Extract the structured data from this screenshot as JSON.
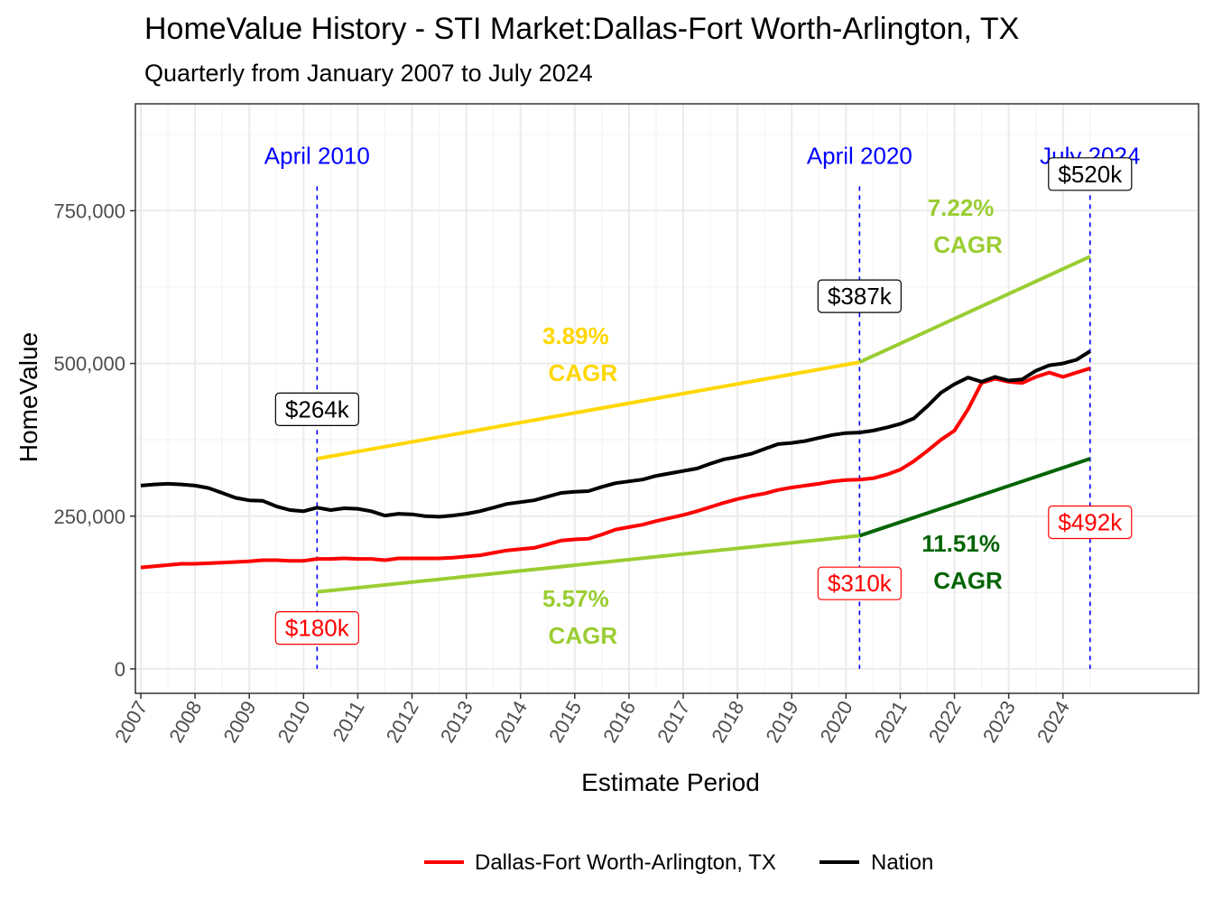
{
  "chart_data": {
    "type": "line",
    "title": "HomeValue History - STI Market:Dallas-Fort Worth-Arlington, TX",
    "subtitle": "Quarterly from January 2007 to July 2024",
    "xlabel": "Estimate Period",
    "ylabel": "HomeValue",
    "ylim": [
      -40000,
      925000
    ],
    "xlim": [
      2006.9,
      2026.5
    ],
    "x_ticks": [
      "2007",
      "2008",
      "2009",
      "2010",
      "2011",
      "2012",
      "2013",
      "2014",
      "2015",
      "2016",
      "2017",
      "2018",
      "2019",
      "2020",
      "2021",
      "2022",
      "2023",
      "2024"
    ],
    "y_ticks": [
      {
        "value": 0,
        "label": "0"
      },
      {
        "value": 250000,
        "label": "250,000"
      },
      {
        "value": 500000,
        "label": "500,000"
      },
      {
        "value": 750000,
        "label": "750,000"
      }
    ],
    "legend_position": "bottom",
    "series": [
      {
        "name": "Dallas-Fort Worth-Arlington, TX",
        "color": "#ff0000",
        "points": [
          [
            2007.0,
            166000
          ],
          [
            2007.25,
            168000
          ],
          [
            2007.5,
            170000
          ],
          [
            2007.75,
            172000
          ],
          [
            2008.0,
            172000
          ],
          [
            2008.25,
            173000
          ],
          [
            2008.5,
            174000
          ],
          [
            2008.75,
            175000
          ],
          [
            2009.0,
            176000
          ],
          [
            2009.25,
            178000
          ],
          [
            2009.5,
            178000
          ],
          [
            2009.75,
            177000
          ],
          [
            2010.0,
            177000
          ],
          [
            2010.25,
            180000
          ],
          [
            2010.5,
            180000
          ],
          [
            2010.75,
            181000
          ],
          [
            2011.0,
            180000
          ],
          [
            2011.25,
            180000
          ],
          [
            2011.5,
            178000
          ],
          [
            2011.75,
            181000
          ],
          [
            2012.0,
            181000
          ],
          [
            2012.25,
            181000
          ],
          [
            2012.5,
            181000
          ],
          [
            2012.75,
            182000
          ],
          [
            2013.0,
            184000
          ],
          [
            2013.25,
            186000
          ],
          [
            2013.5,
            190000
          ],
          [
            2013.75,
            194000
          ],
          [
            2014.0,
            196000
          ],
          [
            2014.25,
            198000
          ],
          [
            2014.5,
            204000
          ],
          [
            2014.75,
            210000
          ],
          [
            2015.0,
            212000
          ],
          [
            2015.25,
            213000
          ],
          [
            2015.5,
            220000
          ],
          [
            2015.75,
            228000
          ],
          [
            2016.0,
            232000
          ],
          [
            2016.25,
            236000
          ],
          [
            2016.5,
            242000
          ],
          [
            2016.75,
            247000
          ],
          [
            2017.0,
            252000
          ],
          [
            2017.25,
            258000
          ],
          [
            2017.5,
            265000
          ],
          [
            2017.75,
            272000
          ],
          [
            2018.0,
            278000
          ],
          [
            2018.25,
            283000
          ],
          [
            2018.5,
            287000
          ],
          [
            2018.75,
            293000
          ],
          [
            2019.0,
            297000
          ],
          [
            2019.25,
            300000
          ],
          [
            2019.5,
            303000
          ],
          [
            2019.75,
            307000
          ],
          [
            2020.0,
            309000
          ],
          [
            2020.25,
            310000
          ],
          [
            2020.5,
            312000
          ],
          [
            2020.75,
            318000
          ],
          [
            2021.0,
            326000
          ],
          [
            2021.25,
            340000
          ],
          [
            2021.5,
            357000
          ],
          [
            2021.75,
            375000
          ],
          [
            2022.0,
            390000
          ],
          [
            2022.25,
            425000
          ],
          [
            2022.5,
            468000
          ],
          [
            2022.75,
            475000
          ],
          [
            2023.0,
            470000
          ],
          [
            2023.25,
            468000
          ],
          [
            2023.5,
            478000
          ],
          [
            2023.75,
            485000
          ],
          [
            2024.0,
            478000
          ],
          [
            2024.25,
            485000
          ],
          [
            2024.5,
            492000
          ]
        ]
      },
      {
        "name": "Nation",
        "color": "#000000",
        "points": [
          [
            2007.0,
            300000
          ],
          [
            2007.25,
            302000
          ],
          [
            2007.5,
            303000
          ],
          [
            2007.75,
            302000
          ],
          [
            2008.0,
            300000
          ],
          [
            2008.25,
            296000
          ],
          [
            2008.5,
            288000
          ],
          [
            2008.75,
            280000
          ],
          [
            2009.0,
            276000
          ],
          [
            2009.25,
            275000
          ],
          [
            2009.5,
            266000
          ],
          [
            2009.75,
            260000
          ],
          [
            2010.0,
            258000
          ],
          [
            2010.25,
            264000
          ],
          [
            2010.5,
            260000
          ],
          [
            2010.75,
            263000
          ],
          [
            2011.0,
            262000
          ],
          [
            2011.25,
            258000
          ],
          [
            2011.5,
            251000
          ],
          [
            2011.75,
            254000
          ],
          [
            2012.0,
            253000
          ],
          [
            2012.25,
            250000
          ],
          [
            2012.5,
            249000
          ],
          [
            2012.75,
            251000
          ],
          [
            2013.0,
            254000
          ],
          [
            2013.25,
            258000
          ],
          [
            2013.5,
            264000
          ],
          [
            2013.75,
            270000
          ],
          [
            2014.0,
            273000
          ],
          [
            2014.25,
            276000
          ],
          [
            2014.5,
            282000
          ],
          [
            2014.75,
            288000
          ],
          [
            2015.0,
            290000
          ],
          [
            2015.25,
            291000
          ],
          [
            2015.5,
            298000
          ],
          [
            2015.75,
            304000
          ],
          [
            2016.0,
            307000
          ],
          [
            2016.25,
            310000
          ],
          [
            2016.5,
            316000
          ],
          [
            2016.75,
            320000
          ],
          [
            2017.0,
            324000
          ],
          [
            2017.25,
            328000
          ],
          [
            2017.5,
            336000
          ],
          [
            2017.75,
            343000
          ],
          [
            2018.0,
            347000
          ],
          [
            2018.25,
            352000
          ],
          [
            2018.5,
            360000
          ],
          [
            2018.75,
            368000
          ],
          [
            2019.0,
            370000
          ],
          [
            2019.25,
            373000
          ],
          [
            2019.5,
            378000
          ],
          [
            2019.75,
            383000
          ],
          [
            2020.0,
            386000
          ],
          [
            2020.25,
            387000
          ],
          [
            2020.5,
            390000
          ],
          [
            2020.75,
            395000
          ],
          [
            2021.0,
            401000
          ],
          [
            2021.25,
            410000
          ],
          [
            2021.5,
            430000
          ],
          [
            2021.75,
            452000
          ],
          [
            2022.0,
            466000
          ],
          [
            2022.25,
            477000
          ],
          [
            2022.5,
            470000
          ],
          [
            2022.75,
            478000
          ],
          [
            2023.0,
            472000
          ],
          [
            2023.25,
            474000
          ],
          [
            2023.5,
            488000
          ],
          [
            2023.75,
            497000
          ],
          [
            2024.0,
            500000
          ],
          [
            2024.25,
            506000
          ],
          [
            2024.5,
            520000
          ]
        ]
      }
    ],
    "trend_lines": [
      {
        "color": "#ffd700",
        "from": [
          2010.25,
          344000
        ],
        "to": [
          2020.25,
          502000
        ]
      },
      {
        "color": "#9acd32",
        "from": [
          2020.25,
          502000
        ],
        "to": [
          2024.5,
          675000
        ]
      },
      {
        "color": "#9acd32",
        "from": [
          2010.25,
          126000
        ],
        "to": [
          2020.25,
          218000
        ]
      },
      {
        "color": "#006400",
        "from": [
          2020.25,
          218000
        ],
        "to": [
          2024.5,
          344000
        ]
      }
    ],
    "vlines": [
      {
        "x": 2010.25,
        "label": "April 2010"
      },
      {
        "x": 2020.25,
        "label": "April 2020"
      },
      {
        "x": 2024.5,
        "label": "July 2024"
      }
    ],
    "cagr_labels": [
      {
        "pct": "3.89%",
        "word": "CAGR",
        "color": "#ffd700",
        "x": 2015.15,
        "y": 545000
      },
      {
        "pct": "7.22%",
        "word": "CAGR",
        "color": "#9acd32",
        "x": 2022.25,
        "y": 755000
      },
      {
        "pct": "5.57%",
        "word": "CAGR",
        "color": "#9acd32",
        "x": 2015.15,
        "y": 115000
      },
      {
        "pct": "11.51%",
        "word": "CAGR",
        "color": "#006400",
        "x": 2022.25,
        "y": 205000
      }
    ],
    "callouts": [
      {
        "text": "$264k",
        "color": "#000000",
        "x": 2010.25,
        "y": 425000
      },
      {
        "text": "$387k",
        "color": "#000000",
        "x": 2020.25,
        "y": 610000
      },
      {
        "text": "$520k",
        "color": "#000000",
        "x": 2024.5,
        "y": 810000
      },
      {
        "text": "$180k",
        "color": "#ff0000",
        "x": 2010.25,
        "y": 67000
      },
      {
        "text": "$310k",
        "color": "#ff0000",
        "x": 2020.25,
        "y": 140000
      },
      {
        "text": "$492k",
        "color": "#ff0000",
        "x": 2024.5,
        "y": 240000
      }
    ]
  }
}
